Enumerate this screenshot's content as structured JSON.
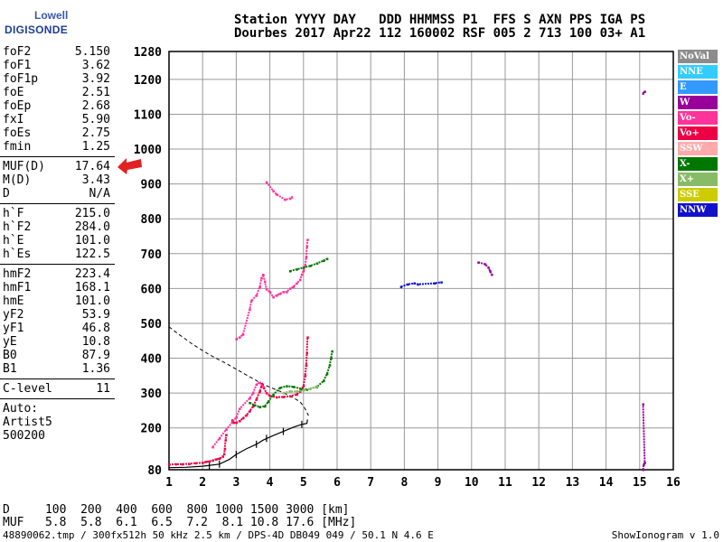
{
  "logo": {
    "top": "Lowell",
    "bottom": "DIGISONDE"
  },
  "header": {
    "line1": "Station YYYY DAY   DDD HHMMSS P1  FFS S AXN PPS IGA PS",
    "line2": "Dourbes 2017 Apr22 112 160002 RSF 005 2 713 100 03+ A1"
  },
  "params": {
    "group1": [
      {
        "name": "foF2",
        "value": "5.150"
      },
      {
        "name": "foF1",
        "value": "3.62"
      },
      {
        "name": "foF1p",
        "value": "3.92"
      },
      {
        "name": "foE",
        "value": "2.51"
      },
      {
        "name": "foEp",
        "value": "2.68"
      },
      {
        "name": "fxI",
        "value": "5.90"
      },
      {
        "name": "foEs",
        "value": "2.75"
      },
      {
        "name": "fmin",
        "value": "1.25"
      }
    ],
    "group2": [
      {
        "name": "MUF(D)",
        "value": "17.64"
      },
      {
        "name": "M(D)",
        "value": "3.43"
      },
      {
        "name": "D",
        "value": "N/A"
      }
    ],
    "group3": [
      {
        "name": "h`F",
        "value": "215.0"
      },
      {
        "name": "h`F2",
        "value": "284.0"
      },
      {
        "name": "h`E",
        "value": "101.0"
      },
      {
        "name": "h`Es",
        "value": "122.5"
      }
    ],
    "group4": [
      {
        "name": "hmF2",
        "value": "223.4"
      },
      {
        "name": "hmF1",
        "value": "168.1"
      },
      {
        "name": "hmE",
        "value": "101.0"
      },
      {
        "name": "yF2",
        "value": "53.9"
      },
      {
        "name": "yF1",
        "value": "46.8"
      },
      {
        "name": "yE",
        "value": "10.8"
      },
      {
        "name": "B0",
        "value": "87.9"
      },
      {
        "name": "B1",
        "value": "1.36"
      }
    ],
    "group5": [
      {
        "name": "C-level",
        "value": "11"
      }
    ],
    "auto": {
      "line1": "Auto:",
      "line2": "Artist5",
      "line3": "500200"
    }
  },
  "legend": [
    {
      "label": "NoVal",
      "color": "#8c8c8c",
      "text_color": "#ffffff"
    },
    {
      "label": "NNE",
      "color": "#33ccff",
      "text_color": "#ffffff"
    },
    {
      "label": "E",
      "color": "#3399ff",
      "text_color": "#ffffff"
    },
    {
      "label": "W",
      "color": "#990099",
      "text_color": "#ffffff"
    },
    {
      "label": "Vo-",
      "color": "#ff3399",
      "text_color": "#ffffff"
    },
    {
      "label": "Vo+",
      "color": "#ee0044",
      "text_color": "#ffffff"
    },
    {
      "label": "SSW",
      "color": "#ffaaaa",
      "text_color": "#ffffff"
    },
    {
      "label": "X-",
      "color": "#007700",
      "text_color": "#ffffff"
    },
    {
      "label": "X+",
      "color": "#88bb66",
      "text_color": "#ffffff"
    },
    {
      "label": "SSE",
      "color": "#cccc00",
      "text_color": "#ffffff"
    },
    {
      "label": "NNW",
      "color": "#1111cc",
      "text_color": "#ffffff"
    }
  ],
  "bottom": {
    "d_line": "D     100  200  400  600  800 1000 1500 3000 [km]",
    "muf_line": "MUF   5.8  5.8  6.1  6.5  7.2  8.1 10.8 17.6 [MHz]",
    "footer_left": "48890062.tmp / 300fx512h 50 kHz 2.5 km / DPS-4D DB049 049 / 50.1 N 4.6 E",
    "footer_right": "ShowIonogram v 1.0"
  },
  "chart_data": {
    "type": "scatter",
    "xlim": [
      1,
      16
    ],
    "ylim": [
      80,
      1280
    ],
    "x_ticks": [
      1,
      2,
      3,
      4,
      5,
      6,
      7,
      8,
      9,
      10,
      11,
      12,
      13,
      14,
      15,
      16
    ],
    "x_tick_labels": [
      "1",
      "2",
      "3",
      "4",
      "5",
      "6",
      "7",
      "8",
      "9",
      "10",
      "11",
      "12",
      "13",
      "14",
      "15",
      "16"
    ],
    "y_ticks": [
      80,
      200,
      300,
      400,
      500,
      600,
      700,
      800,
      900,
      1000,
      1100,
      1200,
      1280
    ],
    "y_tick_labels": [
      "80",
      "200",
      "300",
      "400",
      "500",
      "600",
      "700",
      "800",
      "900",
      "1000",
      "1100",
      "1200",
      "1280"
    ],
    "grid": true,
    "series": [
      {
        "color": "#ee0044",
        "points": [
          [
            1.0,
            95
          ],
          [
            1.2,
            96
          ],
          [
            1.4,
            96
          ],
          [
            1.6,
            97
          ],
          [
            1.8,
            99
          ],
          [
            2.0,
            100
          ],
          [
            2.1,
            103
          ],
          [
            2.2,
            104
          ],
          [
            2.3,
            107
          ],
          [
            2.4,
            110
          ],
          [
            2.5,
            112
          ],
          [
            2.6,
            118
          ],
          [
            2.64,
            125
          ],
          [
            2.66,
            140
          ],
          [
            2.68,
            165
          ],
          [
            2.7,
            180
          ]
        ]
      },
      {
        "color": "#ee0044",
        "points": [
          [
            2.88,
            222
          ],
          [
            2.92,
            215
          ],
          [
            3.0,
            215
          ],
          [
            3.1,
            220
          ],
          [
            3.2,
            228
          ],
          [
            3.3,
            236
          ],
          [
            3.4,
            248
          ],
          [
            3.5,
            262
          ],
          [
            3.6,
            282
          ],
          [
            3.7,
            305
          ],
          [
            3.75,
            320
          ],
          [
            3.78,
            325
          ],
          [
            3.82,
            315
          ],
          [
            3.9,
            300
          ],
          [
            4.0,
            292
          ],
          [
            4.2,
            288
          ],
          [
            4.4,
            289
          ],
          [
            4.6,
            291
          ],
          [
            4.8,
            296
          ],
          [
            4.9,
            305
          ],
          [
            5.0,
            320
          ],
          [
            5.05,
            350
          ],
          [
            5.08,
            380
          ],
          [
            5.1,
            415
          ],
          [
            5.12,
            460
          ]
        ]
      },
      {
        "color": "#ff3399",
        "points": [
          [
            2.3,
            145
          ],
          [
            2.5,
            170
          ],
          [
            2.7,
            195
          ],
          [
            3.0,
            230
          ],
          [
            3.1,
            255
          ],
          [
            3.4,
            285
          ],
          [
            3.5,
            300
          ],
          [
            3.6,
            325
          ],
          [
            3.7,
            330
          ],
          [
            3.8,
            318
          ]
        ]
      },
      {
        "color": "#ff3399",
        "points": [
          [
            3.0,
            455
          ],
          [
            3.1,
            460
          ],
          [
            3.2,
            468
          ],
          [
            3.4,
            540
          ],
          [
            3.45,
            565
          ],
          [
            3.6,
            580
          ],
          [
            3.7,
            605
          ],
          [
            3.75,
            630
          ],
          [
            3.8,
            640
          ],
          [
            3.85,
            620
          ],
          [
            3.9,
            598
          ],
          [
            4.0,
            590
          ],
          [
            4.1,
            575
          ],
          [
            4.2,
            580
          ],
          [
            4.3,
            585
          ],
          [
            4.4,
            590
          ],
          [
            4.5,
            590
          ],
          [
            4.6,
            600
          ],
          [
            4.7,
            605
          ],
          [
            4.8,
            615
          ],
          [
            4.9,
            625
          ],
          [
            4.95,
            640
          ],
          [
            5.0,
            650
          ],
          [
            5.05,
            665
          ],
          [
            5.08,
            690
          ],
          [
            5.1,
            720
          ],
          [
            5.12,
            740
          ]
        ]
      },
      {
        "color": "#ff3399",
        "points": [
          [
            3.9,
            905
          ],
          [
            4.1,
            880
          ],
          [
            4.2,
            870
          ],
          [
            4.45,
            855
          ],
          [
            4.6,
            858
          ],
          [
            4.65,
            862
          ]
        ]
      },
      {
        "color": "#007700",
        "points": [
          [
            3.4,
            272
          ],
          [
            3.55,
            265
          ],
          [
            3.7,
            260
          ],
          [
            3.85,
            262
          ],
          [
            3.95,
            275
          ],
          [
            4.1,
            295
          ],
          [
            4.3,
            315
          ],
          [
            4.5,
            320
          ],
          [
            4.7,
            318
          ],
          [
            4.9,
            313
          ],
          [
            5.1,
            310
          ],
          [
            5.4,
            318
          ],
          [
            5.6,
            335
          ],
          [
            5.7,
            355
          ],
          [
            5.78,
            380
          ],
          [
            5.82,
            400
          ],
          [
            5.85,
            420
          ]
        ]
      },
      {
        "color": "#88bb66",
        "points": [
          [
            4.4,
            300
          ],
          [
            4.6,
            305
          ],
          [
            4.8,
            305
          ],
          [
            5.0,
            308
          ],
          [
            5.2,
            312
          ],
          [
            5.4,
            320
          ]
        ]
      },
      {
        "color": "#007700",
        "points": [
          [
            4.6,
            650
          ],
          [
            4.8,
            655
          ],
          [
            5.0,
            660
          ],
          [
            5.2,
            665
          ],
          [
            5.4,
            672
          ],
          [
            5.6,
            680
          ],
          [
            5.7,
            685
          ]
        ]
      },
      {
        "color": "#1111cc",
        "points": [
          [
            7.9,
            605
          ],
          [
            8.1,
            612
          ],
          [
            8.3,
            615
          ],
          [
            8.4,
            612
          ],
          [
            8.9,
            615
          ],
          [
            9.1,
            618
          ]
        ]
      },
      {
        "color": "#990099",
        "points": [
          [
            10.2,
            675
          ],
          [
            10.4,
            670
          ],
          [
            10.5,
            660
          ],
          [
            10.55,
            650
          ],
          [
            10.6,
            640
          ]
        ]
      },
      {
        "color": "#990099",
        "points": [
          [
            15.1,
            1160
          ],
          [
            15.15,
            1165
          ]
        ]
      },
      {
        "color": "#990099",
        "points": [
          [
            15.1,
            80
          ],
          [
            15.12,
            95
          ],
          [
            15.15,
            100
          ],
          [
            15.1,
            268
          ]
        ]
      }
    ],
    "profile_dashed": [
      [
        1.0,
        490
      ],
      [
        1.3,
        468
      ],
      [
        1.7,
        440
      ],
      [
        2.2,
        410
      ],
      [
        2.7,
        385
      ],
      [
        3.3,
        352
      ],
      [
        3.8,
        325
      ],
      [
        4.3,
        305
      ],
      [
        4.6,
        292
      ],
      [
        4.9,
        275
      ],
      [
        5.05,
        255
      ],
      [
        5.15,
        235
      ]
    ],
    "profile_solid": [
      [
        1.0,
        86
      ],
      [
        1.5,
        87
      ],
      [
        2.0,
        90
      ],
      [
        2.5,
        96
      ],
      [
        2.8,
        110
      ],
      [
        3.0,
        124
      ],
      [
        3.3,
        140
      ],
      [
        3.6,
        153
      ],
      [
        3.8,
        165
      ],
      [
        4.1,
        178
      ],
      [
        4.4,
        190
      ],
      [
        4.7,
        202
      ],
      [
        4.95,
        210
      ],
      [
        5.1,
        213
      ],
      [
        5.12,
        224
      ]
    ],
    "profile_ticks": [
      [
        2.2,
        90
      ],
      [
        2.5,
        96
      ],
      [
        3.0,
        124
      ],
      [
        3.6,
        153
      ],
      [
        3.9,
        170
      ],
      [
        4.4,
        190
      ],
      [
        4.95,
        210
      ]
    ]
  }
}
